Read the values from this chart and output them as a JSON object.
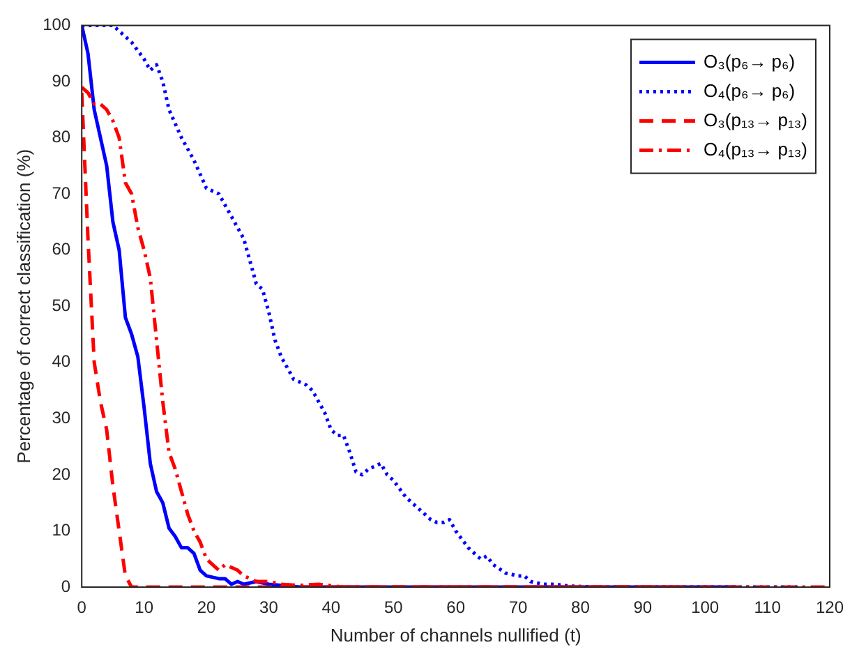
{
  "chart_data": {
    "type": "line",
    "xlabel": "Number of channels nullified (t)",
    "ylabel": "Percentage of correct classification (%)",
    "xlim": [
      0,
      120
    ],
    "ylim": [
      0,
      100
    ],
    "xticks": [
      0,
      10,
      20,
      30,
      40,
      50,
      60,
      70,
      80,
      90,
      100,
      110,
      120
    ],
    "yticks": [
      0,
      10,
      20,
      30,
      40,
      50,
      60,
      70,
      80,
      90,
      100
    ],
    "grid": false,
    "legend": "top right",
    "marker": "none",
    "series": [
      {
        "name": "O₃(p₆→ p₆)",
        "color": "#0000ff",
        "line_style": "solid",
        "x": [
          0,
          1,
          2,
          4,
          5,
          6,
          7,
          8,
          9,
          10,
          11,
          12,
          13,
          14,
          15,
          16,
          17,
          18,
          19,
          20,
          22,
          23,
          24,
          25,
          26,
          28,
          30,
          32,
          35,
          45,
          75,
          105
        ],
        "values": [
          100,
          95,
          85,
          75,
          65,
          60,
          48,
          45,
          41,
          32,
          22,
          17,
          15,
          10.5,
          9,
          7,
          7,
          6,
          3,
          2,
          1.5,
          1.5,
          0.5,
          1,
          0.5,
          1,
          0.5,
          0.3,
          0,
          0,
          0,
          0
        ]
      },
      {
        "name": "O₄(p₆→ p₆)",
        "color": "#0000ff",
        "line_style": "dotted",
        "x": [
          0,
          5,
          6,
          8,
          10,
          11,
          12,
          13,
          14,
          16,
          18,
          20,
          22,
          24,
          26,
          27,
          28,
          29,
          30,
          31,
          32,
          34,
          35,
          36,
          37,
          38,
          39,
          40,
          41,
          42,
          43,
          44,
          45,
          46,
          47,
          48,
          49,
          50,
          52,
          54,
          56,
          57,
          58,
          59,
          60,
          62,
          64,
          65,
          66,
          68,
          70,
          71,
          72,
          74,
          76,
          78,
          82,
          115
        ],
        "values": [
          100,
          100,
          99,
          97,
          94,
          92,
          93,
          90,
          85,
          80,
          76,
          71,
          70,
          66,
          62,
          58,
          54,
          53,
          49,
          44,
          41,
          37,
          36.5,
          36,
          35,
          33,
          31,
          28,
          27,
          27,
          24,
          20.5,
          20,
          21,
          21.5,
          22,
          20,
          19,
          16,
          14,
          12,
          11.5,
          11.5,
          12,
          10,
          7,
          5,
          5.5,
          4,
          2.5,
          2,
          2,
          1,
          0.5,
          0.5,
          0.2,
          0,
          0
        ]
      },
      {
        "name": "O₃(p₁₃→ p₁₃)",
        "color": "#ff0000",
        "line_style": "dashed",
        "x": [
          0,
          1,
          2,
          3,
          4,
          5,
          6,
          7,
          8,
          12,
          55,
          95
        ],
        "values": [
          88,
          62,
          40,
          33,
          28,
          18,
          10,
          2,
          0,
          0,
          0,
          0
        ]
      },
      {
        "name": "O₄(p₁₃→ p₁₃)",
        "color": "#ff0000",
        "line_style": "dashdot",
        "x": [
          0,
          1,
          2,
          3,
          4,
          5,
          6,
          7,
          8,
          9,
          10,
          11,
          12,
          13,
          14,
          15,
          16,
          17,
          18,
          19,
          20,
          21,
          22,
          23,
          24,
          25,
          26,
          27,
          28,
          30,
          32,
          35,
          38,
          42,
          85,
          120
        ],
        "values": [
          89,
          88,
          86,
          86,
          85,
          83,
          80,
          72,
          70,
          64,
          60,
          55,
          44,
          33,
          24,
          21,
          17,
          13,
          10,
          8,
          5,
          4,
          3,
          4,
          3.5,
          3,
          2,
          1.5,
          1,
          1,
          0.5,
          0.3,
          0.5,
          0,
          0,
          0
        ]
      }
    ]
  }
}
